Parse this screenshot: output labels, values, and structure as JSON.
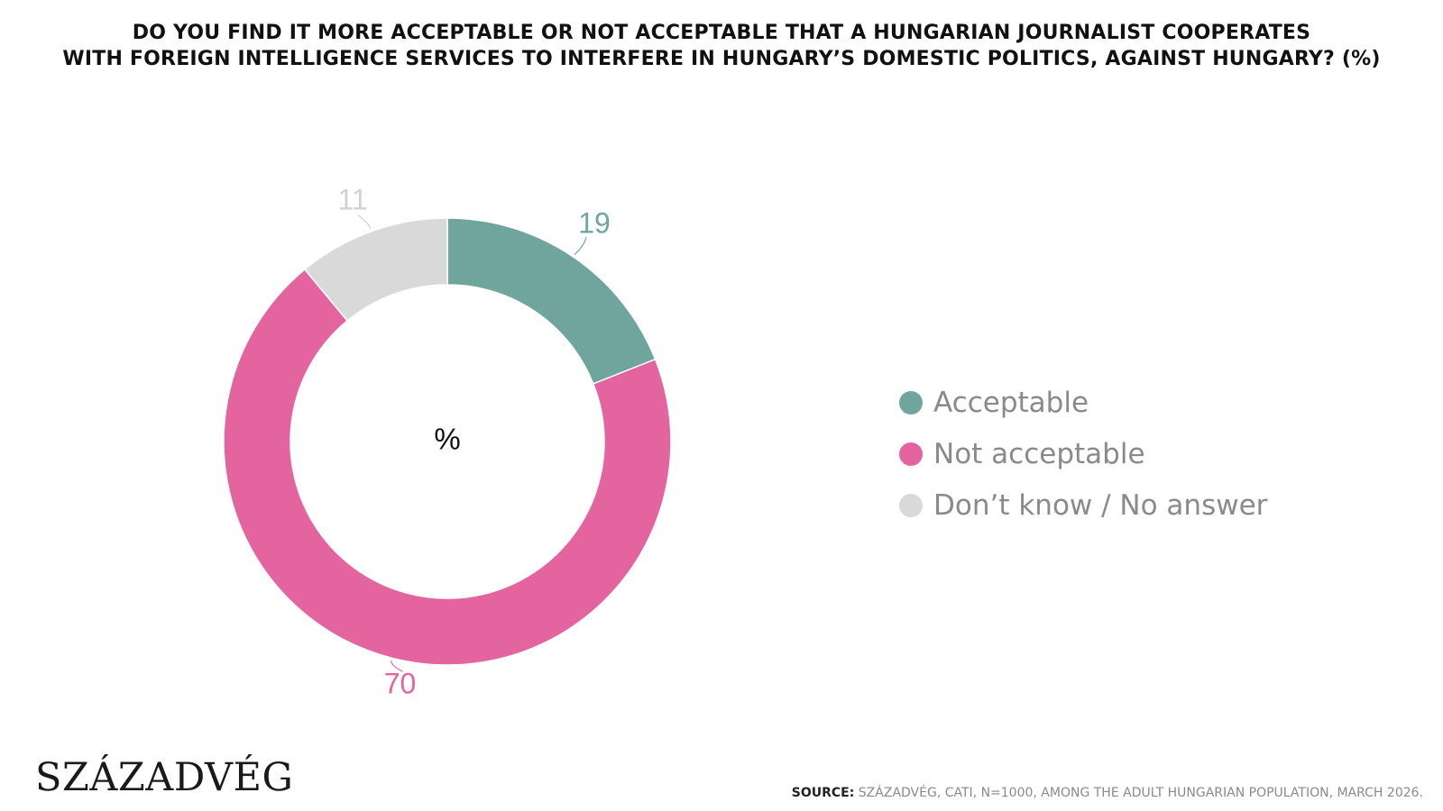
{
  "header": {
    "title_line1": "DO YOU FIND IT MORE ACCEPTABLE OR NOT ACCEPTABLE THAT A HUNGARIAN JOURNALIST COOPERATES",
    "title_line2": "WITH FOREIGN INTELLIGENCE SERVICES TO INTERFERE IN HUNGARY’S DOMESTIC POLITICS, AGAINST HUNGARY? (%)"
  },
  "chart_data": {
    "type": "pie",
    "variant": "donut",
    "title": "DO YOU FIND IT MORE ACCEPTABLE OR NOT ACCEPTABLE THAT A HUNGARIAN JOURNALIST COOPERATES WITH FOREIGN INTELLIGENCE SERVICES TO INTERFERE IN HUNGARY’S DOMESTIC POLITICS, AGAINST HUNGARY? (%)",
    "center_label": "%",
    "categories": [
      "Acceptable",
      "Not acceptable",
      "Don’t know / No answer"
    ],
    "values": [
      19,
      70,
      11
    ],
    "colors": [
      "#6fa59d",
      "#e3649e",
      "#d9d9d9"
    ],
    "label_colors": [
      "#6fa59d",
      "#e3649e",
      "#d2d2d2"
    ],
    "legend_position": "right"
  },
  "legend": {
    "items": [
      {
        "label": "Acceptable",
        "color": "#6fa59d"
      },
      {
        "label": "Not acceptable",
        "color": "#e3649e"
      },
      {
        "label": "Don’t know / No answer",
        "color": "#d9d9d9"
      }
    ]
  },
  "footer": {
    "logo": "SZÁZADVÉG",
    "source_label": "SOURCE:",
    "source_text": "SZÁZADVÉG, CATI, N=1000, AMONG THE ADULT HUNGARIAN POPULATION, MARCH 2026."
  }
}
